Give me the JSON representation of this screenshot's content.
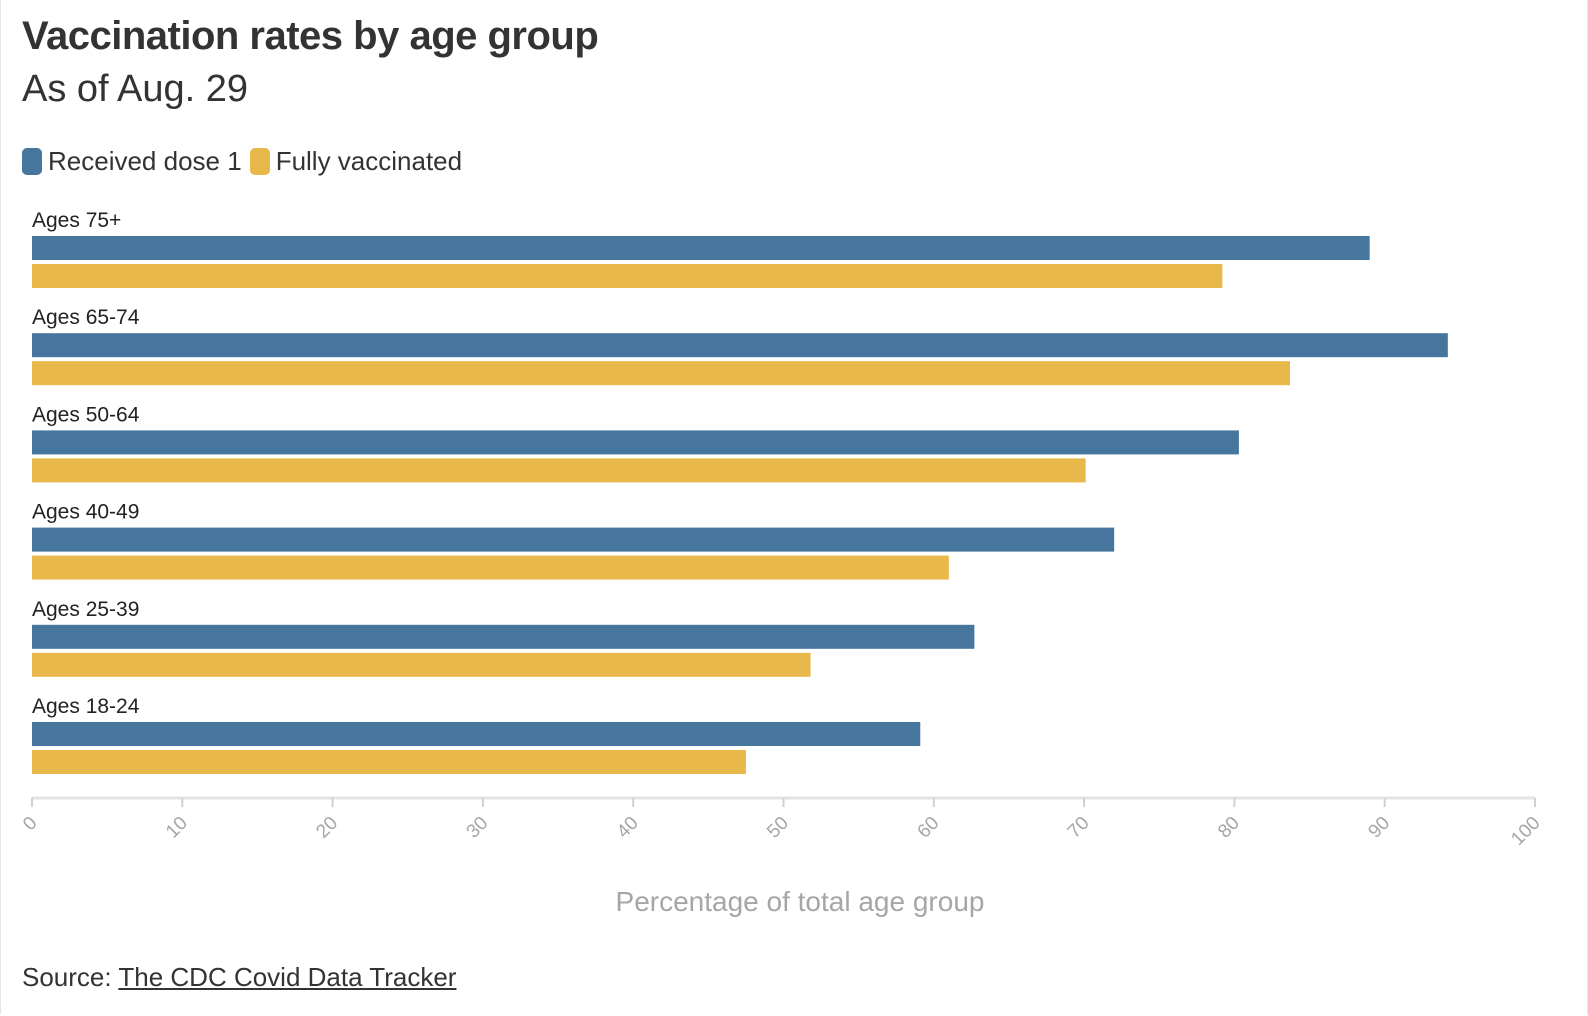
{
  "header": {
    "title": "Vaccination rates by age group",
    "subtitle": "As of Aug. 29"
  },
  "legend": {
    "items": [
      {
        "label": "Received dose 1",
        "color": "#46769e"
      },
      {
        "label": "Fully vaccinated",
        "color": "#e8b84b"
      }
    ]
  },
  "footer": {
    "source_prefix": "Source: ",
    "source_link": "The CDC Covid Data Tracker"
  },
  "chart_data": {
    "type": "bar",
    "orientation": "horizontal",
    "title": "Vaccination rates by age group",
    "subtitle": "As of Aug. 29",
    "categories": [
      "Ages 75+",
      "Ages 65-74",
      "Ages 50-64",
      "Ages 40-49",
      "Ages 25-39",
      "Ages 18-24"
    ],
    "series": [
      {
        "name": "Received dose 1",
        "color": "#46769e",
        "values": [
          89.0,
          94.2,
          80.3,
          72.0,
          62.7,
          59.1
        ]
      },
      {
        "name": "Fully vaccinated",
        "color": "#e8b84b",
        "values": [
          79.2,
          83.7,
          70.1,
          61.0,
          51.8,
          47.5
        ]
      }
    ],
    "xlabel": "Percentage of total age group",
    "ylabel": "",
    "xlim": [
      0,
      100
    ],
    "xticks": [
      "0",
      "10",
      "20",
      "30",
      "40",
      "50",
      "60",
      "70",
      "80",
      "90",
      "100"
    ],
    "grid": false,
    "legend_position": "top-left"
  }
}
